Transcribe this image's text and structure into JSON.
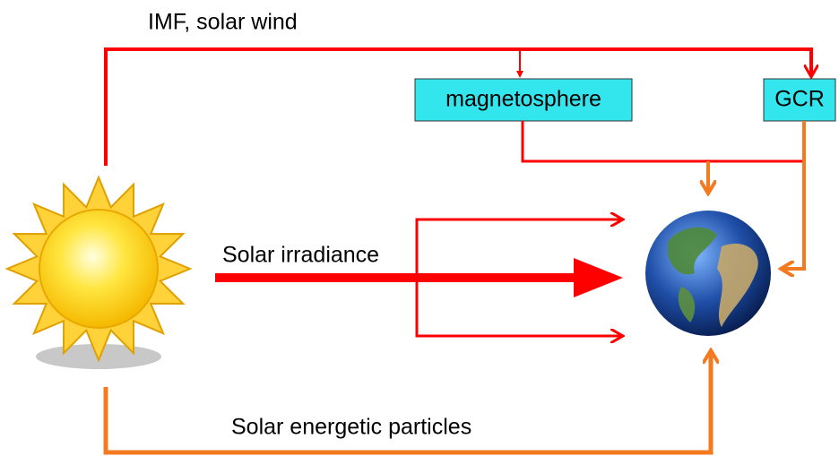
{
  "labels": {
    "solar_wind": "IMF, solar wind",
    "irradiance": "Solar irradiance",
    "particles": "Solar energetic particles"
  },
  "nodes": [
    {
      "label": "magnetosphere"
    },
    {
      "label": "GCR"
    }
  ]
}
